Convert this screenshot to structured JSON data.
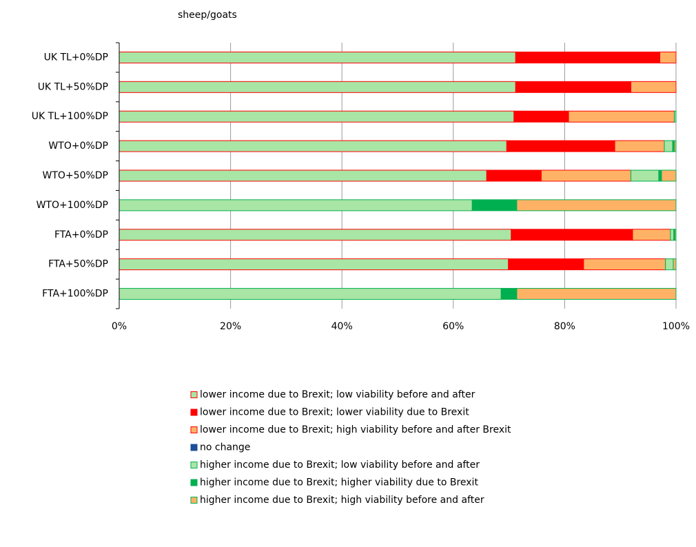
{
  "chart_data": {
    "type": "stacked-barh",
    "title": "sheep/goats",
    "categories": [
      "UK TL+0%DP",
      "UK TL+50%DP",
      "UK TL+100%DP",
      "WTO+0%DP",
      "WTO+50%DP",
      "WTO+100%DP",
      "FTA+0%DP",
      "FTA+50%DP",
      "FTA+100%DP"
    ],
    "series": [
      {
        "name": "lower income due to Brexit; low viability before and after",
        "color": "#a9e5a5",
        "edgecolor": "#ff0000",
        "values": [
          71.2,
          71.2,
          70.9,
          69.6,
          66.0,
          0,
          70.4,
          69.9,
          0
        ]
      },
      {
        "name": "lower income due to Brexit; lower viability due to Brexit",
        "color": "#ff0000",
        "edgecolor": "#ff0000",
        "values": [
          25.9,
          20.7,
          9.8,
          19.4,
          9.8,
          0,
          21.8,
          13.5,
          0
        ]
      },
      {
        "name": "lower income due to Brexit; high viability before and after Brexit",
        "color": "#ffb266",
        "edgecolor": "#ff0000",
        "values": [
          2.9,
          8.1,
          19.0,
          8.9,
          16.1,
          0,
          6.8,
          14.7,
          0
        ]
      },
      {
        "name": "no change",
        "color": "#1f4e9a",
        "edgecolor": "#1f4e9a",
        "values": [
          0,
          0,
          0,
          0,
          0,
          0,
          0,
          0,
          0
        ]
      },
      {
        "name": "higher income due to Brexit; low viability before and after",
        "color": "#a9e5a5",
        "edgecolor": "#00b050",
        "values": [
          0,
          0,
          0.3,
          1.5,
          5.0,
          63.4,
          0.6,
          1.4,
          68.6
        ]
      },
      {
        "name": "higher income due to Brexit; higher viability due to Brexit",
        "color": "#00b050",
        "edgecolor": "#00b050",
        "values": [
          0,
          0,
          0,
          0.3,
          0.5,
          8.0,
          0.2,
          0,
          2.8
        ]
      },
      {
        "name": "higher income due to Brexit; high viability before and after",
        "color": "#ffb266",
        "edgecolor": "#00b050",
        "values": [
          0,
          0,
          0,
          0.3,
          2.6,
          28.6,
          0.2,
          0.5,
          28.6
        ]
      }
    ],
    "xlim": [
      0,
      100
    ],
    "xticks": [
      {
        "value": 0,
        "label": "0%"
      },
      {
        "value": 20,
        "label": "20%"
      },
      {
        "value": 40,
        "label": "40%"
      },
      {
        "value": 60,
        "label": "60%"
      },
      {
        "value": 80,
        "label": "80%"
      },
      {
        "value": 100,
        "label": "100%"
      }
    ],
    "grid": true
  }
}
